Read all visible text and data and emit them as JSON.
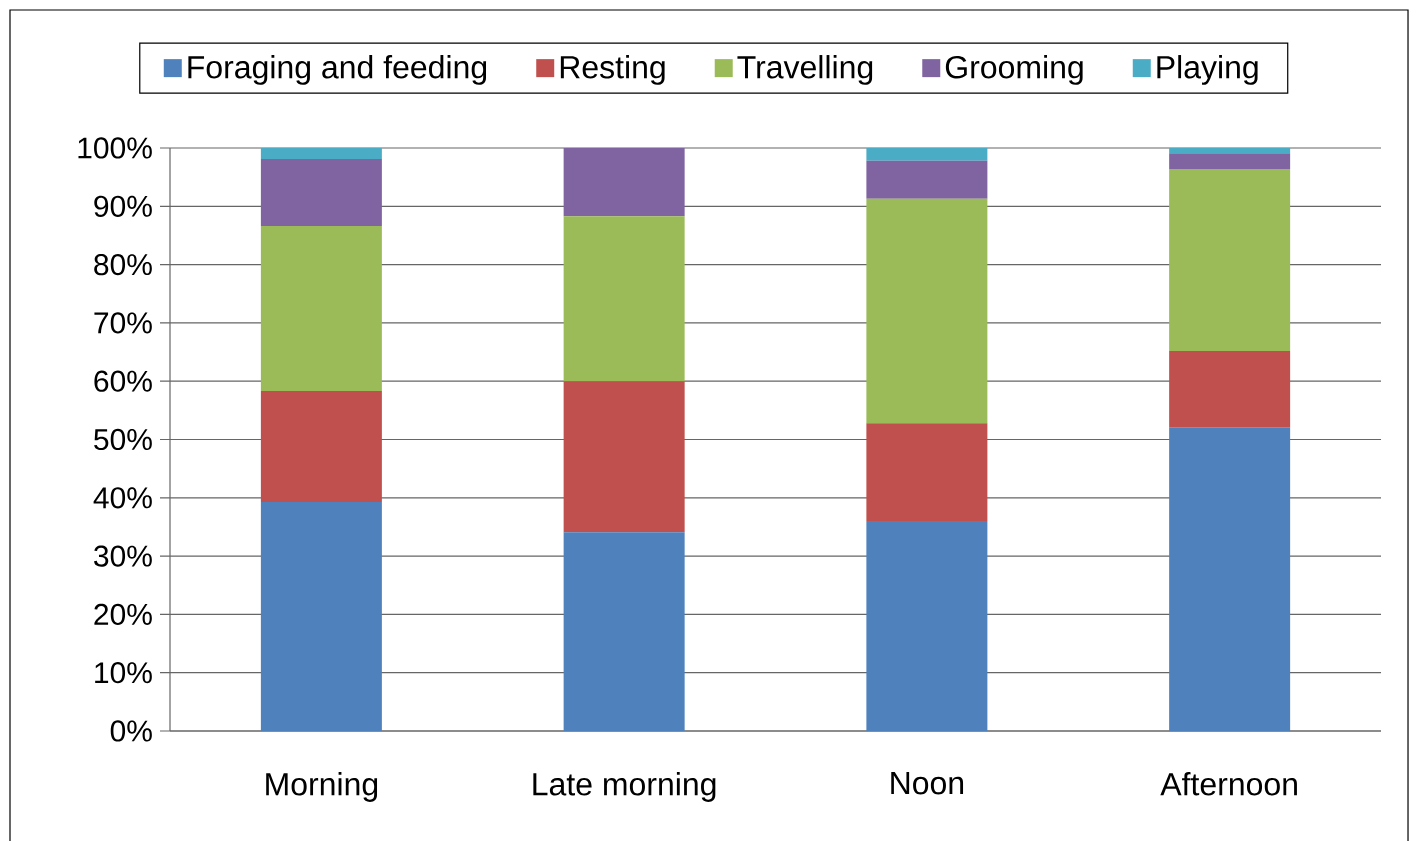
{
  "chart_data": {
    "type": "bar",
    "stacked": true,
    "categories": [
      "Morning",
      "Late morning",
      "Noon",
      "Afternoon"
    ],
    "series": [
      {
        "name": "Foraging and feeding",
        "color": "#4f81bd",
        "values": [
          39.3,
          34.1,
          36.0,
          52.1
        ]
      },
      {
        "name": "Resting",
        "color": "#c0504d",
        "values": [
          19.0,
          25.9,
          16.8,
          13.1
        ]
      },
      {
        "name": "Travelling",
        "color": "#9bbb59",
        "values": [
          28.3,
          28.3,
          38.5,
          31.2
        ]
      },
      {
        "name": "Grooming",
        "color": "#8064a2",
        "values": [
          11.5,
          11.7,
          6.5,
          2.7
        ]
      },
      {
        "name": "Playing",
        "color": "#4bacc6",
        "values": [
          1.9,
          0,
          2.2,
          0.9
        ]
      }
    ],
    "ylim": [
      0,
      100
    ],
    "yticks": [
      {
        "value": 0,
        "label": "0%"
      },
      {
        "value": 10,
        "label": "10%"
      },
      {
        "value": 20,
        "label": "20%"
      },
      {
        "value": 30,
        "label": "30%"
      },
      {
        "value": 40,
        "label": "40%"
      },
      {
        "value": 50,
        "label": "50%"
      },
      {
        "value": 60,
        "label": "60%"
      },
      {
        "value": 70,
        "label": "70%"
      },
      {
        "value": 80,
        "label": "80%"
      },
      {
        "value": 90,
        "label": "90%"
      },
      {
        "value": 100,
        "label": "100%"
      }
    ],
    "grid": "y",
    "legend": "top"
  }
}
